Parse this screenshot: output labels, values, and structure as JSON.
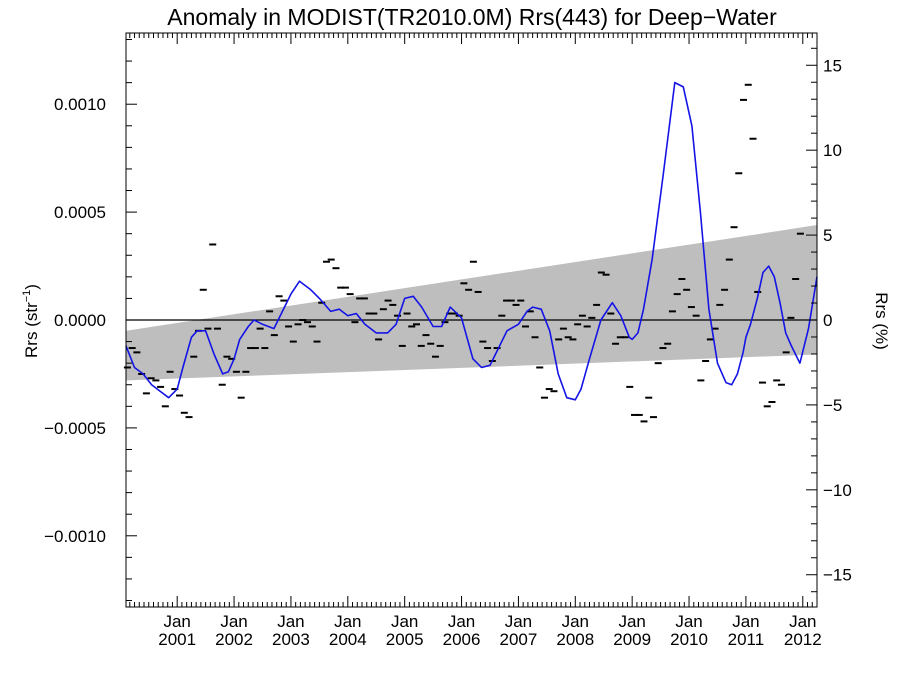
{
  "chart_data": {
    "type": "scatter",
    "title": "Anomaly in MODIST(TR2010.0M) Rrs(443) for Deep−Water",
    "ylabel_left": {
      "base": "Rrs (str",
      "sup": "−1",
      "end": ")"
    },
    "ylabel_right": "Rrs (%)",
    "x_time_range": [
      2000.1,
      2012.25
    ],
    "ylim_left": [
      -0.00133,
      0.00133
    ],
    "ylim_right": [
      -16.9,
      16.9
    ],
    "zero_line": 0,
    "grid": false,
    "left_ticks": [
      {
        "value": 0.001,
        "label": "0.0010"
      },
      {
        "value": 0.0005,
        "label": "0.0005"
      },
      {
        "value": 0.0,
        "label": "0.0000"
      },
      {
        "value": -0.0005,
        "label": "−0.0005"
      },
      {
        "value": -0.001,
        "label": "−0.0010"
      }
    ],
    "right_ticks": [
      {
        "value": 15,
        "label": "15"
      },
      {
        "value": 10,
        "label": "10"
      },
      {
        "value": 5,
        "label": "5"
      },
      {
        "value": 0,
        "label": "0"
      },
      {
        "value": -5,
        "label": "−5"
      },
      {
        "value": -10,
        "label": "−10"
      },
      {
        "value": -15,
        "label": "−15"
      }
    ],
    "x_ticks": [
      {
        "value": 2001.0,
        "label1": "Jan",
        "label2": "2001"
      },
      {
        "value": 2002.0,
        "label1": "Jan",
        "label2": "2002"
      },
      {
        "value": 2003.0,
        "label1": "Jan",
        "label2": "2003"
      },
      {
        "value": 2004.0,
        "label1": "Jan",
        "label2": "2004"
      },
      {
        "value": 2005.0,
        "label1": "Jan",
        "label2": "2005"
      },
      {
        "value": 2006.0,
        "label1": "Jan",
        "label2": "2006"
      },
      {
        "value": 2007.0,
        "label1": "Jan",
        "label2": "2007"
      },
      {
        "value": 2008.0,
        "label1": "Jan",
        "label2": "2008"
      },
      {
        "value": 2009.0,
        "label1": "Jan",
        "label2": "2009"
      },
      {
        "value": 2010.0,
        "label1": "Jan",
        "label2": "2010"
      },
      {
        "value": 2011.0,
        "label1": "Jan",
        "label2": "2011"
      },
      {
        "value": 2012.0,
        "label1": "Jan",
        "label2": "2012"
      }
    ],
    "trend_band": {
      "start": {
        "x": 2000.1,
        "upper": -5e-05,
        "lower": -0.00028
      },
      "end": {
        "x": 2012.25,
        "upper": 0.00044,
        "lower": -0.00016
      },
      "color": "#bebebe"
    },
    "monthly_points": {
      "color": "#000000",
      "x_start": 2000.125,
      "x_step": 0.08333,
      "values": [
        -0.00022,
        -0.00013,
        -0.00015,
        -0.00025,
        -0.00034,
        -0.00027,
        -0.00028,
        -0.00031,
        -0.0004,
        -0.00024,
        -0.00032,
        -0.00035,
        -0.00043,
        -0.00045,
        -0.00017,
        -5e-05,
        0.00014,
        -4e-05,
        0.00035,
        -4e-05,
        -0.0003,
        -0.00017,
        -0.00018,
        -0.00024,
        -0.00036,
        -0.00024,
        -0.00013,
        -0.00013,
        -4e-05,
        -0.00013,
        4e-05,
        -7e-05,
        0.00011,
        9e-05,
        -3e-05,
        -0.0001,
        -2e-05,
        0.0,
        -1e-05,
        -3e-05,
        -0.0001,
        8e-05,
        0.00027,
        0.00028,
        0.00024,
        0.00015,
        0.00015,
        0.00012,
        -1e-05,
        0.0001,
        0.0001,
        3e-05,
        3e-05,
        -9e-05,
        5e-05,
        9e-05,
        7e-05,
        2e-05,
        -0.00012,
        3e-05,
        -3e-05,
        -2e-05,
        -0.00012,
        -7e-05,
        -0.00011,
        -0.00017,
        -0.00012,
        -1e-05,
        3e-05,
        3e-05,
        2e-05,
        0.00017,
        0.00014,
        0.00027,
        0.00013,
        -0.0001,
        -0.00013,
        -0.00019,
        -0.00013,
        2e-05,
        9e-05,
        9e-05,
        7e-05,
        9e-05,
        -3e-05,
        4e-05,
        -8e-05,
        -0.00022,
        -0.00036,
        -0.00032,
        -0.00033,
        -9e-05,
        -4e-05,
        -8e-05,
        -9e-05,
        -2e-05,
        2e-05,
        -3e-05,
        1e-05,
        7e-05,
        0.00022,
        0.00021,
        3e-05,
        -0.00011,
        -8e-05,
        -8e-05,
        -0.00031,
        -0.00044,
        -0.00044,
        -0.00047,
        -0.00036,
        -0.00045,
        -0.0002,
        -0.00013,
        -0.00011,
        4e-05,
        0.00012,
        0.00019,
        0.00014,
        6e-05,
        2e-05,
        -0.00028,
        -0.00019,
        -9e-05,
        -4e-05,
        7e-05,
        0.00014,
        0.00028,
        0.00043,
        0.00068,
        0.00102,
        0.00109,
        0.00084,
        0.00013,
        -0.00029,
        -0.0004,
        -0.00038,
        -0.00028,
        -0.0003,
        -0.00015,
        1e-05,
        0.00019,
        0.0004
      ]
    },
    "smooth_line": {
      "color": "#1414e6",
      "x": [
        2000.1,
        2000.25,
        2000.4,
        2000.55,
        2000.7,
        2000.85,
        2001.0,
        2001.1,
        2001.25,
        2001.35,
        2001.5,
        2001.65,
        2001.8,
        2001.9,
        2002.0,
        2002.1,
        2002.25,
        2002.35,
        2002.5,
        2002.7,
        2002.85,
        2003.0,
        2003.15,
        2003.35,
        2003.5,
        2003.7,
        2003.85,
        2004.0,
        2004.15,
        2004.3,
        2004.5,
        2004.7,
        2004.85,
        2005.0,
        2005.15,
        2005.3,
        2005.5,
        2005.65,
        2005.8,
        2006.0,
        2006.2,
        2006.35,
        2006.5,
        2006.65,
        2006.8,
        2007.0,
        2007.15,
        2007.25,
        2007.4,
        2007.55,
        2007.7,
        2007.85,
        2008.0,
        2008.1,
        2008.25,
        2008.45,
        2008.65,
        2008.8,
        2008.95,
        2009.0,
        2009.1,
        2009.2,
        2009.35,
        2009.55,
        2009.75,
        2009.9,
        2010.05,
        2010.2,
        2010.35,
        2010.5,
        2010.65,
        2010.75,
        2010.85,
        2010.95,
        2011.0,
        2011.08,
        2011.2,
        2011.3,
        2011.4,
        2011.5,
        2011.6,
        2011.7,
        2011.8,
        2011.95,
        2012.1,
        2012.25
      ],
      "y": [
        -0.00012,
        -0.00022,
        -0.00025,
        -0.0003,
        -0.00033,
        -0.00036,
        -0.00032,
        -0.00022,
        -8e-05,
        -5e-05,
        -5e-05,
        -0.00016,
        -0.00025,
        -0.00024,
        -0.00018,
        -9e-05,
        -3e-05,
        0.0,
        -2e-05,
        -4e-05,
        4e-05,
        0.00012,
        0.00018,
        0.00014,
        0.0001,
        4e-05,
        5e-05,
        2e-05,
        3e-05,
        -2e-05,
        -6e-05,
        -6e-05,
        -2e-05,
        0.0001,
        0.00011,
        6e-05,
        -3e-05,
        -3e-05,
        6e-05,
        1e-05,
        -0.00018,
        -0.00022,
        -0.00021,
        -0.00013,
        -5e-05,
        -2e-05,
        4e-05,
        6e-05,
        5e-05,
        -5e-05,
        -0.00025,
        -0.00036,
        -0.00037,
        -0.00032,
        -0.00018,
        0.0,
        8e-05,
        2e-05,
        -8e-05,
        -9e-05,
        -6e-05,
        5e-05,
        0.00028,
        0.00068,
        0.0011,
        0.00108,
        0.0009,
        0.0005,
        5e-05,
        -0.0002,
        -0.00029,
        -0.0003,
        -0.00025,
        -0.00015,
        -8e-05,
        -2e-05,
        0.0001,
        0.00022,
        0.00025,
        0.0002,
        8e-05,
        -6e-05,
        -0.00012,
        -0.0002,
        -4e-05,
        0.0002
      ],
      "note": "x values are decimal years"
    }
  }
}
